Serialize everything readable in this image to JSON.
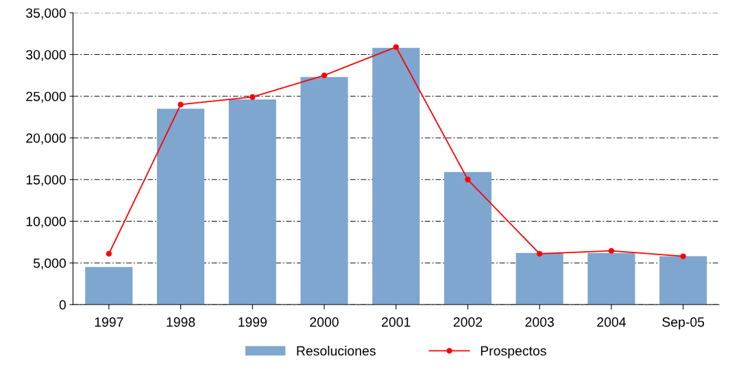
{
  "chart_data": {
    "type": "bar",
    "categories": [
      "1997",
      "1998",
      "1999",
      "2000",
      "2001",
      "2002",
      "2003",
      "2004",
      "Sep-05"
    ],
    "series": [
      {
        "name": "Resoluciones",
        "color": "#7ea6cf",
        "values": [
          4500,
          23500,
          24600,
          27300,
          30800,
          15900,
          6200,
          6200,
          5800
        ]
      },
      {
        "name": "Prospectos",
        "type": "line",
        "color": "#ff0000",
        "marker": "circle",
        "values": [
          6100,
          24000,
          24900,
          27500,
          30900,
          15000,
          6100,
          6450,
          5800
        ]
      }
    ],
    "ylim": [
      0,
      35000
    ],
    "yticks": [
      {
        "value": 0,
        "label": "0"
      },
      {
        "value": 5000,
        "label": "5,000"
      },
      {
        "value": 10000,
        "label": "10,000"
      },
      {
        "value": 15000,
        "label": "15,000"
      },
      {
        "value": 20000,
        "label": "20,000"
      },
      {
        "value": 25000,
        "label": "25,000"
      },
      {
        "value": 30000,
        "label": "30,000"
      },
      {
        "value": 35000,
        "label": "35,000"
      }
    ],
    "grid": "y",
    "legend": "bottom"
  }
}
